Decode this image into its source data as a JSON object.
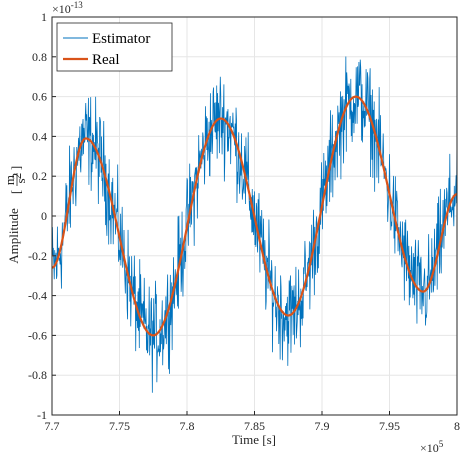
{
  "chart_data": {
    "type": "line",
    "xlabel": "Time [s]",
    "ylabel_text": "Amplitude",
    "ylabel_unit_num": "m",
    "ylabel_unit_den": "s",
    "ylabel_unit_den_exp": "2",
    "x_exponent_prefix": "×10",
    "x_exponent_power": "5",
    "y_exponent_prefix": "×10",
    "y_exponent_power": "-13",
    "xlim": [
      7.7,
      8.0
    ],
    "ylim": [
      -1.0,
      1.0
    ],
    "x_ticks": [
      7.7,
      7.75,
      7.8,
      7.85,
      7.9,
      7.95,
      8.0
    ],
    "x_tick_labels": [
      "7.7",
      "7.75",
      "7.8",
      "7.85",
      "7.9",
      "7.95",
      "8"
    ],
    "y_ticks": [
      -1.0,
      -0.8,
      -0.6,
      -0.4,
      -0.2,
      0,
      0.2,
      0.4,
      0.6,
      0.8,
      1.0
    ],
    "y_tick_labels": [
      "-1",
      "-0.8",
      "-0.6",
      "-0.4",
      "-0.2",
      "0",
      "0.2",
      "0.4",
      "0.6",
      "0.8",
      "1"
    ],
    "grid": true,
    "legend_position": "top-left",
    "series": [
      {
        "name": "Estimator",
        "color": "#0072BD",
        "noise_amplitude": 0.12,
        "description_of_values": "noisy version of Real series"
      },
      {
        "name": "Real",
        "color": "#D95319",
        "x": [
          7.7,
          7.725,
          7.775,
          7.825,
          7.875,
          7.925,
          7.975,
          8.0
        ],
        "y": [
          -0.26,
          0.39,
          -0.6,
          0.49,
          -0.5,
          0.6,
          -0.38,
          0.11
        ]
      }
    ]
  }
}
